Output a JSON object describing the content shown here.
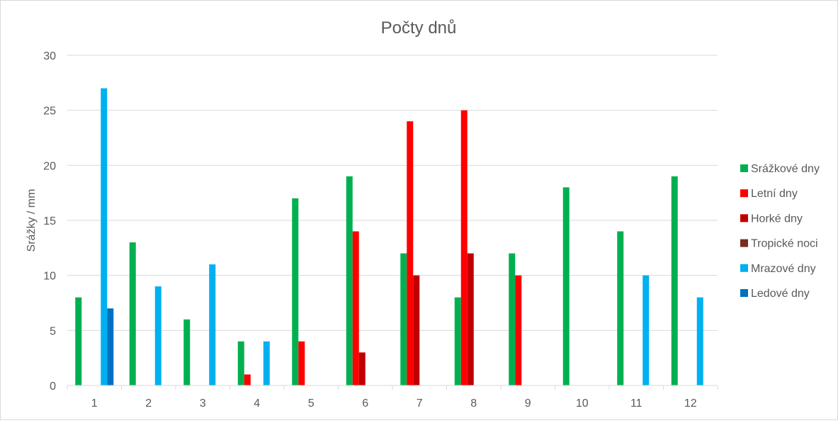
{
  "chart_data": {
    "type": "bar",
    "title": "Počty dnů",
    "xlabel": "",
    "ylabel": "Srážky / mm",
    "ylim": [
      0,
      30
    ],
    "yticks": [
      0,
      5,
      10,
      15,
      20,
      25,
      30
    ],
    "grid": true,
    "legend_position": "right",
    "categories": [
      "1",
      "2",
      "3",
      "4",
      "5",
      "6",
      "7",
      "8",
      "9",
      "10",
      "11",
      "12"
    ],
    "series": [
      {
        "name": "Srážkové dny",
        "color": "#00b050",
        "values": [
          8,
          13,
          6,
          4,
          17,
          19,
          12,
          8,
          12,
          18,
          14,
          19
        ]
      },
      {
        "name": "Letní dny",
        "color": "#ff0000",
        "values": [
          0,
          0,
          0,
          1,
          4,
          14,
          24,
          25,
          10,
          0,
          0,
          0
        ]
      },
      {
        "name": "Horké dny",
        "color": "#c00000",
        "values": [
          0,
          0,
          0,
          0,
          0,
          3,
          10,
          12,
          0,
          0,
          0,
          0
        ]
      },
      {
        "name": "Tropické noci",
        "color": "#7b2b21",
        "values": [
          0,
          0,
          0,
          0,
          0,
          0,
          0,
          0,
          0,
          0,
          0,
          0
        ]
      },
      {
        "name": "Mrazové dny",
        "color": "#00b0f0",
        "values": [
          27,
          9,
          11,
          4,
          0,
          0,
          0,
          0,
          0,
          0,
          10,
          8
        ]
      },
      {
        "name": "Ledové dny",
        "color": "#0070c0",
        "values": [
          7,
          0,
          0,
          0,
          0,
          0,
          0,
          0,
          0,
          0,
          0,
          0
        ]
      }
    ]
  }
}
